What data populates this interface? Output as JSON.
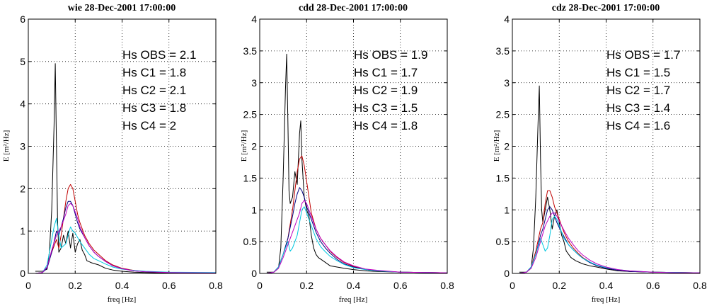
{
  "chart_data": [
    {
      "type": "line",
      "title": "wie 28-Dec-2001 17:00:00",
      "xlabel": "freq [Hz]",
      "ylabel": "E [m²/Hz]",
      "xlim": [
        0,
        0.8
      ],
      "ylim": [
        0,
        6
      ],
      "xticks": [
        "0",
        "0.2",
        "0.4",
        "0.6",
        "0.8"
      ],
      "yticks": [
        "0",
        "1",
        "2",
        "3",
        "4",
        "5",
        "6"
      ],
      "grid": true,
      "annotations": [
        "Hs OBS = 2.1",
        "Hs C1 = 1.8",
        "Hs C2 = 2.1",
        "Hs C3 = 1.8",
        "Hs C4 = 2"
      ],
      "series": [
        {
          "color": "#000000",
          "x": [
            0.03,
            0.06,
            0.08,
            0.09,
            0.1,
            0.11,
            0.115,
            0.12,
            0.125,
            0.13,
            0.14,
            0.15,
            0.16,
            0.17,
            0.18,
            0.19,
            0.2,
            0.21,
            0.22,
            0.23,
            0.24,
            0.25,
            0.27,
            0.3,
            0.33,
            0.36,
            0.4,
            0.45,
            0.5,
            0.6,
            0.8
          ],
          "y": [
            0.05,
            0.05,
            0.1,
            0.5,
            1.5,
            3.5,
            4.95,
            3.0,
            1.2,
            0.5,
            0.6,
            0.9,
            0.7,
            1.0,
            0.6,
            0.95,
            0.5,
            0.7,
            0.8,
            0.55,
            0.45,
            0.3,
            0.25,
            0.2,
            0.12,
            0.08,
            0.05,
            0.03,
            0.02,
            0.01,
            0.01
          ]
        },
        {
          "color": "#c00000",
          "x": [
            0.03,
            0.06,
            0.08,
            0.1,
            0.12,
            0.13,
            0.14,
            0.15,
            0.16,
            0.17,
            0.18,
            0.19,
            0.2,
            0.21,
            0.22,
            0.24,
            0.26,
            0.28,
            0.3,
            0.33,
            0.36,
            0.4,
            0.45,
            0.5,
            0.6,
            0.8
          ],
          "y": [
            0.0,
            0.02,
            0.15,
            0.5,
            0.8,
            0.6,
            0.9,
            1.3,
            1.7,
            2.0,
            2.1,
            2.0,
            1.7,
            1.4,
            1.2,
            0.9,
            0.7,
            0.55,
            0.45,
            0.3,
            0.2,
            0.12,
            0.07,
            0.04,
            0.02,
            0.01
          ]
        },
        {
          "color": "#000080",
          "x": [
            0.03,
            0.06,
            0.08,
            0.1,
            0.12,
            0.13,
            0.14,
            0.15,
            0.16,
            0.17,
            0.18,
            0.19,
            0.2,
            0.21,
            0.22,
            0.24,
            0.26,
            0.28,
            0.3,
            0.33,
            0.36,
            0.4,
            0.45,
            0.5,
            0.6,
            0.8
          ],
          "y": [
            0.0,
            0.02,
            0.12,
            0.5,
            1.0,
            0.9,
            1.1,
            1.3,
            1.55,
            1.7,
            1.7,
            1.6,
            1.4,
            1.2,
            1.05,
            0.85,
            0.65,
            0.5,
            0.4,
            0.28,
            0.18,
            0.11,
            0.06,
            0.04,
            0.02,
            0.01
          ]
        },
        {
          "color": "#00c8e0",
          "x": [
            0.03,
            0.06,
            0.08,
            0.1,
            0.11,
            0.12,
            0.13,
            0.14,
            0.15,
            0.16,
            0.17,
            0.18,
            0.19,
            0.2,
            0.21,
            0.22,
            0.24,
            0.26,
            0.28,
            0.3,
            0.33,
            0.36,
            0.4,
            0.45,
            0.5,
            0.6,
            0.8
          ],
          "y": [
            0.0,
            0.02,
            0.2,
            0.8,
            1.1,
            1.3,
            0.9,
            0.6,
            0.65,
            0.7,
            0.9,
            1.1,
            1.0,
            0.95,
            0.85,
            0.75,
            0.6,
            0.45,
            0.35,
            0.3,
            0.22,
            0.15,
            0.1,
            0.07,
            0.05,
            0.03,
            0.02
          ]
        },
        {
          "color": "#c000c0",
          "x": [
            0.03,
            0.06,
            0.08,
            0.1,
            0.12,
            0.14,
            0.16,
            0.17,
            0.18,
            0.19,
            0.2,
            0.21,
            0.22,
            0.24,
            0.26,
            0.28,
            0.3,
            0.33,
            0.36,
            0.4,
            0.45,
            0.5,
            0.6,
            0.8
          ],
          "y": [
            0.0,
            0.02,
            0.15,
            0.55,
            0.9,
            1.1,
            1.4,
            1.6,
            1.65,
            1.6,
            1.45,
            1.3,
            1.1,
            0.85,
            0.65,
            0.5,
            0.4,
            0.28,
            0.18,
            0.11,
            0.06,
            0.04,
            0.02,
            0.01
          ]
        }
      ]
    },
    {
      "type": "line",
      "title": "cdd 28-Dec-2001 17:00:00",
      "xlabel": "freq [Hz]",
      "ylabel": "E [m²/Hz]",
      "xlim": [
        0,
        0.8
      ],
      "ylim": [
        0,
        4
      ],
      "xticks": [
        "0",
        "0.2",
        "0.4",
        "0.6",
        "0.8"
      ],
      "yticks": [
        "0",
        "0.5",
        "1",
        "1.5",
        "2",
        "2.5",
        "3",
        "3.5",
        "4"
      ],
      "grid": true,
      "annotations": [
        "Hs OBS = 1.9",
        "Hs C1 = 1.7",
        "Hs C2 = 1.9",
        "Hs C3 = 1.5",
        "Hs C4 = 1.8"
      ],
      "series": [
        {
          "color": "#000000",
          "x": [
            0.03,
            0.06,
            0.08,
            0.09,
            0.1,
            0.11,
            0.115,
            0.12,
            0.125,
            0.13,
            0.14,
            0.15,
            0.16,
            0.17,
            0.175,
            0.18,
            0.19,
            0.2,
            0.21,
            0.22,
            0.23,
            0.24,
            0.25,
            0.27,
            0.3,
            0.33,
            0.36,
            0.4,
            0.45,
            0.5,
            0.6,
            0.8
          ],
          "y": [
            0.02,
            0.02,
            0.08,
            0.4,
            1.5,
            2.9,
            3.45,
            2.4,
            1.3,
            1.1,
            1.2,
            1.6,
            1.4,
            2.2,
            2.4,
            1.8,
            1.2,
            1.0,
            0.9,
            0.6,
            0.4,
            0.3,
            0.25,
            0.2,
            0.12,
            0.1,
            0.08,
            0.06,
            0.04,
            0.03,
            0.02,
            0.01
          ]
        },
        {
          "color": "#c00000",
          "x": [
            0.03,
            0.06,
            0.08,
            0.1,
            0.12,
            0.14,
            0.15,
            0.16,
            0.17,
            0.18,
            0.19,
            0.2,
            0.21,
            0.22,
            0.24,
            0.26,
            0.28,
            0.3,
            0.33,
            0.36,
            0.4,
            0.45,
            0.5,
            0.6,
            0.8
          ],
          "y": [
            0.0,
            0.02,
            0.1,
            0.3,
            0.55,
            1.0,
            1.3,
            1.6,
            1.8,
            1.85,
            1.7,
            1.45,
            1.2,
            0.95,
            0.7,
            0.55,
            0.45,
            0.35,
            0.25,
            0.17,
            0.11,
            0.06,
            0.04,
            0.02,
            0.01
          ]
        },
        {
          "color": "#000080",
          "x": [
            0.03,
            0.06,
            0.08,
            0.1,
            0.12,
            0.14,
            0.15,
            0.16,
            0.17,
            0.18,
            0.19,
            0.2,
            0.21,
            0.22,
            0.24,
            0.26,
            0.28,
            0.3,
            0.33,
            0.36,
            0.4,
            0.45,
            0.5,
            0.6,
            0.8
          ],
          "y": [
            0.0,
            0.02,
            0.1,
            0.3,
            0.55,
            0.9,
            1.1,
            1.25,
            1.35,
            1.3,
            1.2,
            1.05,
            0.95,
            0.85,
            0.65,
            0.5,
            0.4,
            0.32,
            0.22,
            0.15,
            0.1,
            0.06,
            0.04,
            0.02,
            0.01
          ]
        },
        {
          "color": "#00c8e0",
          "x": [
            0.03,
            0.06,
            0.08,
            0.1,
            0.12,
            0.13,
            0.14,
            0.15,
            0.16,
            0.17,
            0.18,
            0.19,
            0.2,
            0.21,
            0.22,
            0.24,
            0.26,
            0.28,
            0.3,
            0.33,
            0.36,
            0.4,
            0.45,
            0.5,
            0.6,
            0.8
          ],
          "y": [
            0.0,
            0.02,
            0.1,
            0.3,
            0.5,
            0.35,
            0.4,
            0.5,
            0.6,
            0.8,
            1.0,
            1.05,
            0.95,
            0.85,
            0.75,
            0.55,
            0.42,
            0.34,
            0.27,
            0.2,
            0.14,
            0.09,
            0.06,
            0.04,
            0.02,
            0.01
          ]
        },
        {
          "color": "#c000c0",
          "x": [
            0.03,
            0.06,
            0.08,
            0.1,
            0.12,
            0.14,
            0.16,
            0.17,
            0.18,
            0.19,
            0.2,
            0.21,
            0.22,
            0.24,
            0.26,
            0.28,
            0.3,
            0.33,
            0.36,
            0.4,
            0.45,
            0.5,
            0.6,
            0.8
          ],
          "y": [
            0.0,
            0.02,
            0.08,
            0.25,
            0.45,
            0.65,
            0.85,
            0.95,
            1.1,
            1.15,
            1.1,
            1.0,
            0.9,
            0.7,
            0.55,
            0.45,
            0.36,
            0.26,
            0.18,
            0.12,
            0.07,
            0.05,
            0.02,
            0.01
          ]
        }
      ]
    },
    {
      "type": "line",
      "title": "cdz 28-Dec-2001 17:00:00",
      "xlabel": "freq [Hz]",
      "ylabel": "E [m²/Hz]",
      "xlim": [
        0,
        0.8
      ],
      "ylim": [
        0,
        4
      ],
      "xticks": [
        "0",
        "0.2",
        "0.4",
        "0.6",
        "0.8"
      ],
      "yticks": [
        "0",
        "0.5",
        "1",
        "1.5",
        "2",
        "2.5",
        "3",
        "3.5",
        "4"
      ],
      "grid": true,
      "annotations": [
        "Hs OBS = 1.7",
        "Hs C1 = 1.5",
        "Hs C2 = 1.7",
        "Hs C3 = 1.4",
        "Hs C4 = 1.6"
      ],
      "series": [
        {
          "color": "#000000",
          "x": [
            0.03,
            0.06,
            0.08,
            0.09,
            0.1,
            0.11,
            0.115,
            0.12,
            0.125,
            0.13,
            0.14,
            0.15,
            0.16,
            0.17,
            0.18,
            0.19,
            0.2,
            0.21,
            0.22,
            0.23,
            0.25,
            0.27,
            0.3,
            0.33,
            0.36,
            0.4,
            0.45,
            0.5,
            0.6,
            0.8
          ],
          "y": [
            0.02,
            0.02,
            0.08,
            0.4,
            1.2,
            2.4,
            2.95,
            1.8,
            1.0,
            0.8,
            1.0,
            1.2,
            1.0,
            0.7,
            0.9,
            1.0,
            0.8,
            0.6,
            0.5,
            0.35,
            0.25,
            0.2,
            0.15,
            0.12,
            0.1,
            0.07,
            0.04,
            0.03,
            0.02,
            0.01
          ]
        },
        {
          "color": "#c00000",
          "x": [
            0.03,
            0.06,
            0.08,
            0.1,
            0.12,
            0.13,
            0.14,
            0.15,
            0.16,
            0.17,
            0.18,
            0.19,
            0.2,
            0.21,
            0.22,
            0.24,
            0.26,
            0.28,
            0.3,
            0.33,
            0.36,
            0.4,
            0.45,
            0.5,
            0.6,
            0.8
          ],
          "y": [
            0.0,
            0.02,
            0.1,
            0.35,
            0.7,
            0.8,
            1.1,
            1.3,
            1.3,
            1.2,
            1.05,
            0.95,
            0.85,
            0.75,
            0.65,
            0.5,
            0.4,
            0.32,
            0.25,
            0.18,
            0.12,
            0.08,
            0.05,
            0.03,
            0.02,
            0.01
          ]
        },
        {
          "color": "#000080",
          "x": [
            0.03,
            0.06,
            0.08,
            0.1,
            0.12,
            0.13,
            0.14,
            0.15,
            0.16,
            0.17,
            0.18,
            0.19,
            0.2,
            0.21,
            0.22,
            0.24,
            0.26,
            0.28,
            0.3,
            0.33,
            0.36,
            0.4,
            0.45,
            0.5,
            0.6,
            0.8
          ],
          "y": [
            0.0,
            0.02,
            0.1,
            0.3,
            0.6,
            0.7,
            0.85,
            1.0,
            1.05,
            1.0,
            0.9,
            0.8,
            0.72,
            0.65,
            0.58,
            0.45,
            0.37,
            0.3,
            0.24,
            0.17,
            0.12,
            0.08,
            0.05,
            0.03,
            0.02,
            0.01
          ]
        },
        {
          "color": "#00c8e0",
          "x": [
            0.03,
            0.06,
            0.08,
            0.1,
            0.12,
            0.13,
            0.14,
            0.15,
            0.16,
            0.17,
            0.18,
            0.19,
            0.2,
            0.21,
            0.22,
            0.24,
            0.26,
            0.28,
            0.3,
            0.33,
            0.36,
            0.4,
            0.45,
            0.5,
            0.6,
            0.8
          ],
          "y": [
            0.0,
            0.02,
            0.1,
            0.3,
            0.55,
            0.45,
            0.35,
            0.4,
            0.6,
            0.85,
            0.9,
            0.85,
            0.75,
            0.65,
            0.55,
            0.45,
            0.37,
            0.3,
            0.24,
            0.18,
            0.13,
            0.09,
            0.06,
            0.04,
            0.02,
            0.01
          ]
        },
        {
          "color": "#c000c0",
          "x": [
            0.03,
            0.06,
            0.08,
            0.1,
            0.12,
            0.14,
            0.16,
            0.17,
            0.18,
            0.19,
            0.2,
            0.21,
            0.22,
            0.24,
            0.26,
            0.28,
            0.3,
            0.33,
            0.36,
            0.4,
            0.45,
            0.5,
            0.6,
            0.7,
            0.8
          ],
          "y": [
            0.0,
            0.02,
            0.08,
            0.25,
            0.5,
            0.75,
            0.9,
            0.95,
            0.95,
            0.9,
            0.82,
            0.75,
            0.68,
            0.55,
            0.45,
            0.36,
            0.29,
            0.21,
            0.15,
            0.1,
            0.06,
            0.04,
            0.02,
            0.01,
            0.01
          ]
        }
      ]
    }
  ]
}
